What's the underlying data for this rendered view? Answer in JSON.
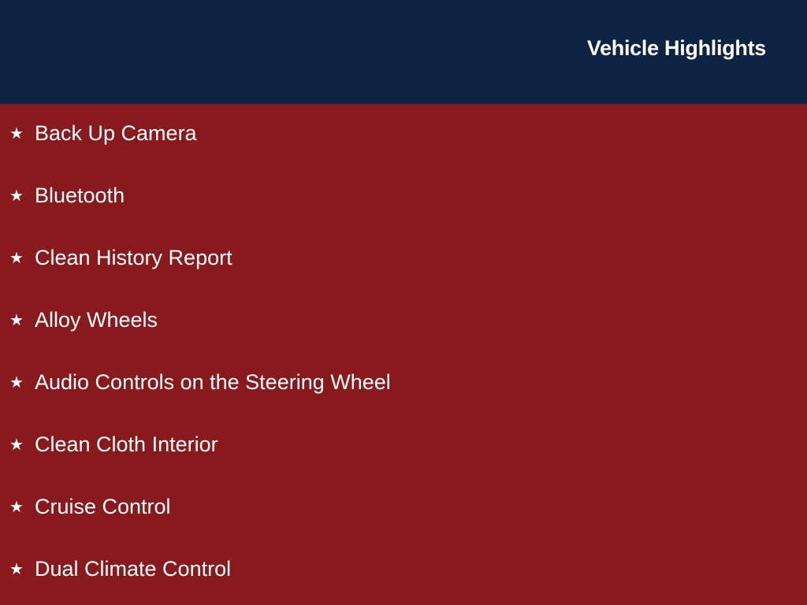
{
  "header": {
    "title": "Vehicle Highlights"
  },
  "highlights": {
    "bullet_icon": "star-icon",
    "items": [
      "Back Up Camera",
      "Bluetooth",
      "Clean History Report",
      "Alloy Wheels",
      "Audio Controls on the Steering Wheel",
      "Clean Cloth Interior",
      "Cruise Control",
      "Dual Climate Control"
    ]
  },
  "colors": {
    "header_bg": "#0c2342",
    "body_bg": "#881a1d",
    "text": "#ffffff"
  }
}
